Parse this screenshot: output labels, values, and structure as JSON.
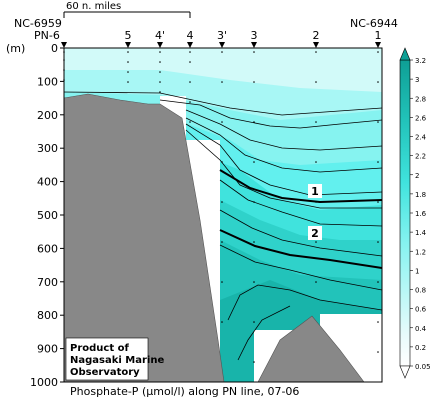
{
  "chart_data": {
    "type": "contour",
    "title": "Phosphate-P (μmol/l) along PN line, 07-06",
    "title_prefix": "Phosphate-P (",
    "title_unit": "μmol/l",
    "title_suffix": ") along PN line, 07-06",
    "ylabel": "(m)",
    "ylim": [
      0,
      1000
    ],
    "yticks": [
      0,
      100,
      200,
      300,
      400,
      500,
      600,
      700,
      800,
      900,
      1000
    ],
    "stations": [
      "PN-6",
      "5",
      "4'",
      "4",
      "3'",
      "3",
      "2",
      "1"
    ],
    "left_end_label": "NC-6959",
    "right_end_label": "NC-6944",
    "scale_bar_label": "60 n. miles",
    "contour_labels": [
      "1",
      "2"
    ],
    "colorbar_levels": [
      "0.05",
      "0.2",
      "0.4",
      "0.6",
      "0.8",
      "1",
      "1.2",
      "1.4",
      "1.6",
      "1.8",
      "2",
      "2.2",
      "2.4",
      "2.6",
      "2.8",
      "3",
      "3.2"
    ],
    "colors": {
      "low": "#e8fbfb",
      "mid": "#62f0ee",
      "high": "#11b3a8",
      "seafloor": "#888888",
      "contour": "#000000"
    },
    "product_box": [
      "Product of",
      "Nagasaki Marine",
      "Observatory"
    ]
  }
}
